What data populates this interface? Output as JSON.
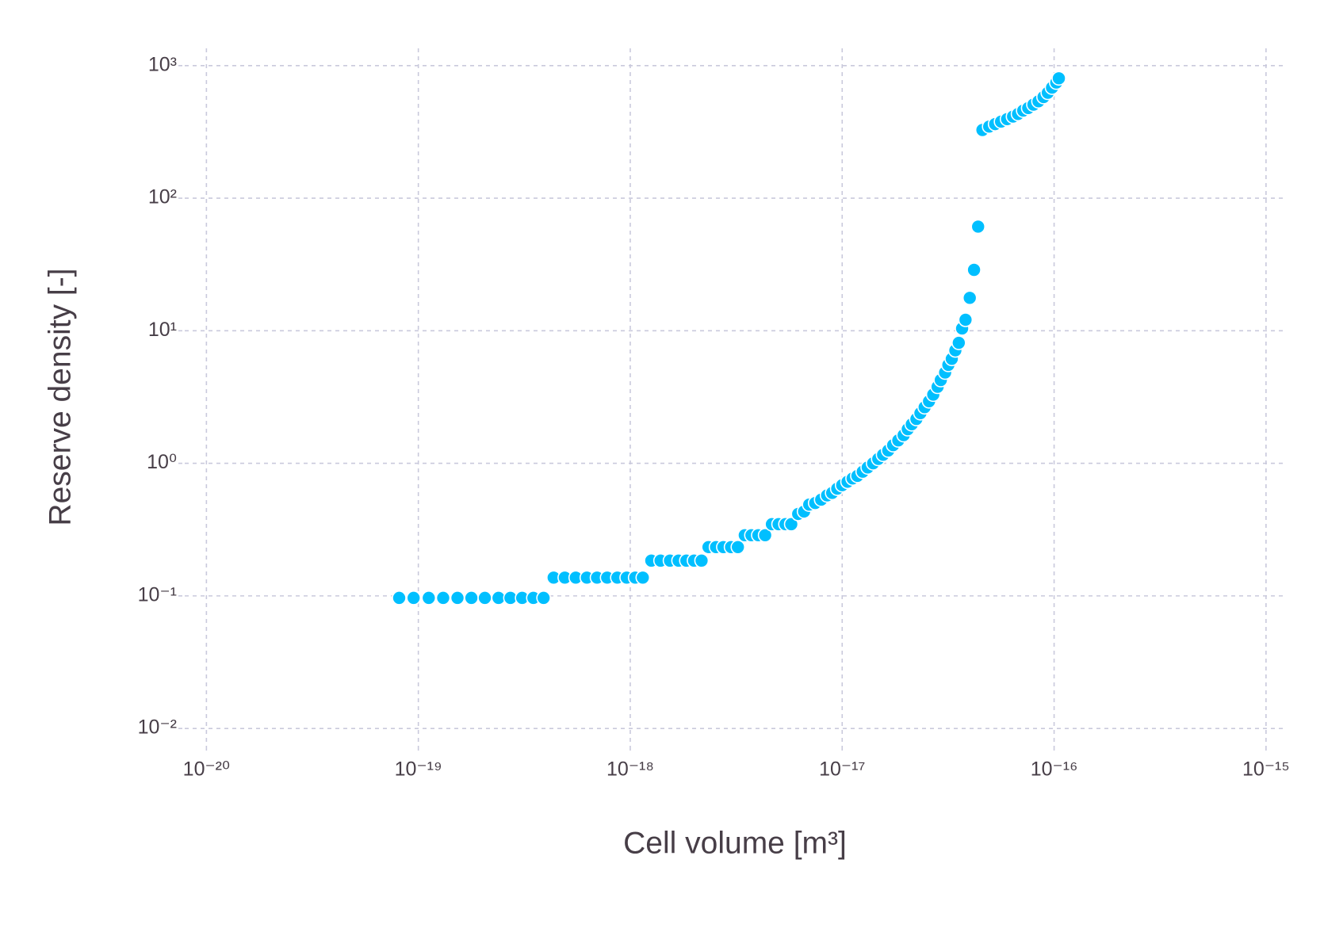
{
  "chart_data": {
    "type": "scatter",
    "x_label": "Cell volume [m³]",
    "y_label": "Reserve density [-]",
    "xscale": "log",
    "yscale": "log",
    "grid": true,
    "xlim": [
      7.9e-21,
      1.21e-15
    ],
    "ylim": [
      0.0073,
      1350
    ],
    "xticks": [
      {
        "value": 1e-20,
        "label": "10⁻²⁰"
      },
      {
        "value": 1e-19,
        "label": "10⁻¹⁹"
      },
      {
        "value": 1e-18,
        "label": "10⁻¹⁸"
      },
      {
        "value": 1e-17,
        "label": "10⁻¹⁷"
      },
      {
        "value": 1e-16,
        "label": "10⁻¹⁶"
      },
      {
        "value": 1e-15,
        "label": "10⁻¹⁵"
      }
    ],
    "yticks": [
      {
        "value": 0.01,
        "label": "10⁻²"
      },
      {
        "value": 0.1,
        "label": "10⁻¹"
      },
      {
        "value": 1,
        "label": "10⁰"
      },
      {
        "value": 10,
        "label": "10¹"
      },
      {
        "value": 100,
        "label": "10²"
      },
      {
        "value": 1000,
        "label": "10³"
      }
    ],
    "series": [
      {
        "color": "#00bfff",
        "x": [
          8.12e-20,
          9.5e-20,
          1.12e-19,
          1.31e-19,
          1.53e-19,
          1.78e-19,
          2.06e-19,
          2.39e-19,
          2.72e-19,
          3.09e-19,
          3.49e-19,
          3.9e-19,
          4.35e-19,
          4.91e-19,
          5.53e-19,
          6.24e-19,
          6.97e-19,
          7.78e-19,
          8.69e-19,
          9.62e-19,
          1.055e-18,
          1.146e-18,
          1.257e-18,
          1.39e-18,
          1.54e-18,
          1.69e-18,
          1.84e-18,
          2e-18,
          2.17e-18,
          2.34e-18,
          2.54e-18,
          2.75e-18,
          2.99e-18,
          3.22e-18,
          3.47e-18,
          3.73e-18,
          4.02e-18,
          4.33e-18,
          4.66e-18,
          5.01e-18,
          5.4e-18,
          5.75e-18,
          6.2e-18,
          6.61e-18,
          6.99e-18,
          7.46e-18,
          7.96e-18,
          8.49e-18,
          8.97e-18,
          9.48e-18,
          1e-17,
          1.06e-17,
          1.12e-17,
          1.18e-17,
          1.25e-17,
          1.32e-17,
          1.4e-17,
          1.48e-17,
          1.56e-17,
          1.65e-17,
          1.74e-17,
          1.84e-17,
          1.95e-17,
          2.04e-17,
          2.13e-17,
          2.24e-17,
          2.34e-17,
          2.45e-17,
          2.57e-17,
          2.69e-17,
          2.82e-17,
          2.92e-17,
          3.06e-17,
          3.17e-17,
          3.29e-17,
          3.42e-17,
          3.55e-17,
          3.68e-17,
          3.82e-17,
          4e-17,
          4.19e-17,
          4.38e-17,
          4.59e-17,
          4.94e-17,
          5.27e-17,
          5.62e-17,
          6e-17,
          6.4e-17,
          6.76e-17,
          7.15e-17,
          7.55e-17,
          7.99e-17,
          8.44e-17,
          8.92e-17,
          9.34e-17,
          9.78e-17,
          1.024e-16,
          1.053e-16
        ],
        "values": [
          0.0966,
          0.0966,
          0.0966,
          0.0966,
          0.0966,
          0.0966,
          0.0966,
          0.0966,
          0.0966,
          0.0966,
          0.0966,
          0.0966,
          0.1374,
          0.1374,
          0.1374,
          0.1374,
          0.1374,
          0.1374,
          0.1374,
          0.1374,
          0.1374,
          0.1374,
          0.1845,
          0.1845,
          0.1845,
          0.1845,
          0.1845,
          0.1845,
          0.1845,
          0.2335,
          0.2335,
          0.2335,
          0.2335,
          0.2335,
          0.287,
          0.287,
          0.287,
          0.287,
          0.3475,
          0.3475,
          0.3475,
          0.3475,
          0.415,
          0.433,
          0.488,
          0.502,
          0.532,
          0.573,
          0.598,
          0.644,
          0.684,
          0.726,
          0.769,
          0.804,
          0.865,
          0.931,
          1.0,
          1.08,
          1.16,
          1.25,
          1.37,
          1.49,
          1.63,
          1.81,
          1.97,
          2.16,
          2.39,
          2.65,
          2.94,
          3.3,
          3.78,
          4.25,
          4.84,
          5.53,
          6.14,
          7.11,
          8.11,
          10.4,
          12.1,
          17.7,
          28.8,
          61.0,
          327,
          347,
          362,
          378,
          395,
          413,
          432,
          458,
          479,
          508,
          538,
          580,
          624,
          682,
          745,
          802
        ]
      }
    ]
  }
}
